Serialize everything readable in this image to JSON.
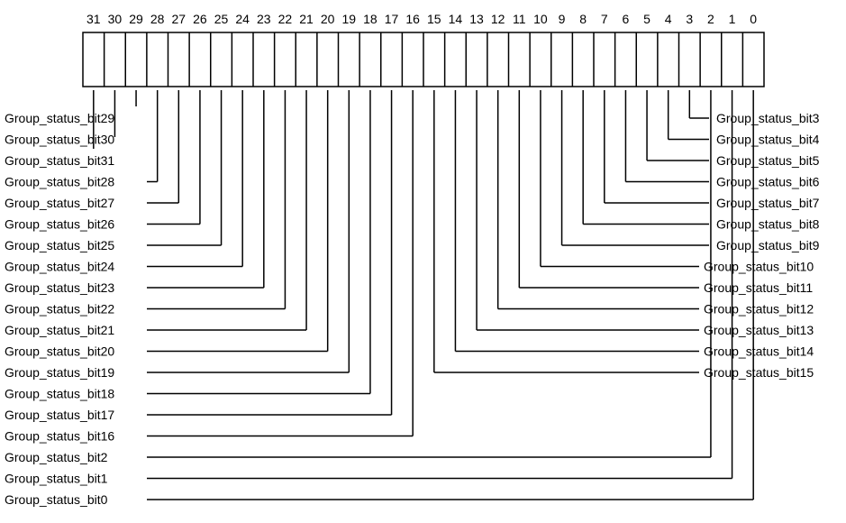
{
  "bit_numbers": [
    "31",
    "30",
    "29",
    "28",
    "27",
    "26",
    "25",
    "24",
    "23",
    "22",
    "21",
    "20",
    "19",
    "18",
    "17",
    "16",
    "15",
    "14",
    "13",
    "12",
    "11",
    "10",
    "9",
    "8",
    "7",
    "6",
    "5",
    "4",
    "3",
    "2",
    "1",
    "0"
  ],
  "left_labels": [
    {
      "bit": 29,
      "label": "Group_status_bit29",
      "connected": false
    },
    {
      "bit": 30,
      "label": "Group_status_bit30",
      "connected": false
    },
    {
      "bit": 31,
      "label": "Group_status_bit31",
      "connected": false
    },
    {
      "bit": 28,
      "label": "Group_status_bit28",
      "connected": true
    },
    {
      "bit": 27,
      "label": "Group_status_bit27",
      "connected": true
    },
    {
      "bit": 26,
      "label": "Group_status_bit26",
      "connected": true
    },
    {
      "bit": 25,
      "label": "Group_status_bit25",
      "connected": true
    },
    {
      "bit": 24,
      "label": "Group_status_bit24",
      "connected": true
    },
    {
      "bit": 23,
      "label": "Group_status_bit23",
      "connected": true
    },
    {
      "bit": 22,
      "label": "Group_status_bit22",
      "connected": true
    },
    {
      "bit": 21,
      "label": "Group_status_bit21",
      "connected": true
    },
    {
      "bit": 20,
      "label": "Group_status_bit20",
      "connected": true
    },
    {
      "bit": 19,
      "label": "Group_status_bit19",
      "connected": true
    },
    {
      "bit": 18,
      "label": "Group_status_bit18",
      "connected": true
    },
    {
      "bit": 17,
      "label": "Group_status_bit17",
      "connected": true
    },
    {
      "bit": 16,
      "label": "Group_status_bit16",
      "connected": true
    },
    {
      "bit": 2,
      "label": "Group_status_bit2",
      "connected": true
    },
    {
      "bit": 1,
      "label": "Group_status_bit1",
      "connected": true
    },
    {
      "bit": 0,
      "label": "Group_status_bit0",
      "connected": true
    }
  ],
  "right_labels": [
    {
      "bit": 3,
      "label": "Group_status_bit3"
    },
    {
      "bit": 4,
      "label": "Group_status_bit4"
    },
    {
      "bit": 5,
      "label": "Group_status_bit5"
    },
    {
      "bit": 6,
      "label": "Group_status_bit6"
    },
    {
      "bit": 7,
      "label": "Group_status_bit7"
    },
    {
      "bit": 8,
      "label": "Group_status_bit8"
    },
    {
      "bit": 9,
      "label": "Group_status_bit9"
    },
    {
      "bit": 10,
      "label": "Group_status_bit10"
    },
    {
      "bit": 11,
      "label": "Group_status_bit11"
    },
    {
      "bit": 12,
      "label": "Group_status_bit12"
    },
    {
      "bit": 13,
      "label": "Group_status_bit13"
    },
    {
      "bit": 14,
      "label": "Group_status_bit14"
    },
    {
      "bit": 15,
      "label": "Group_status_bit15"
    }
  ]
}
